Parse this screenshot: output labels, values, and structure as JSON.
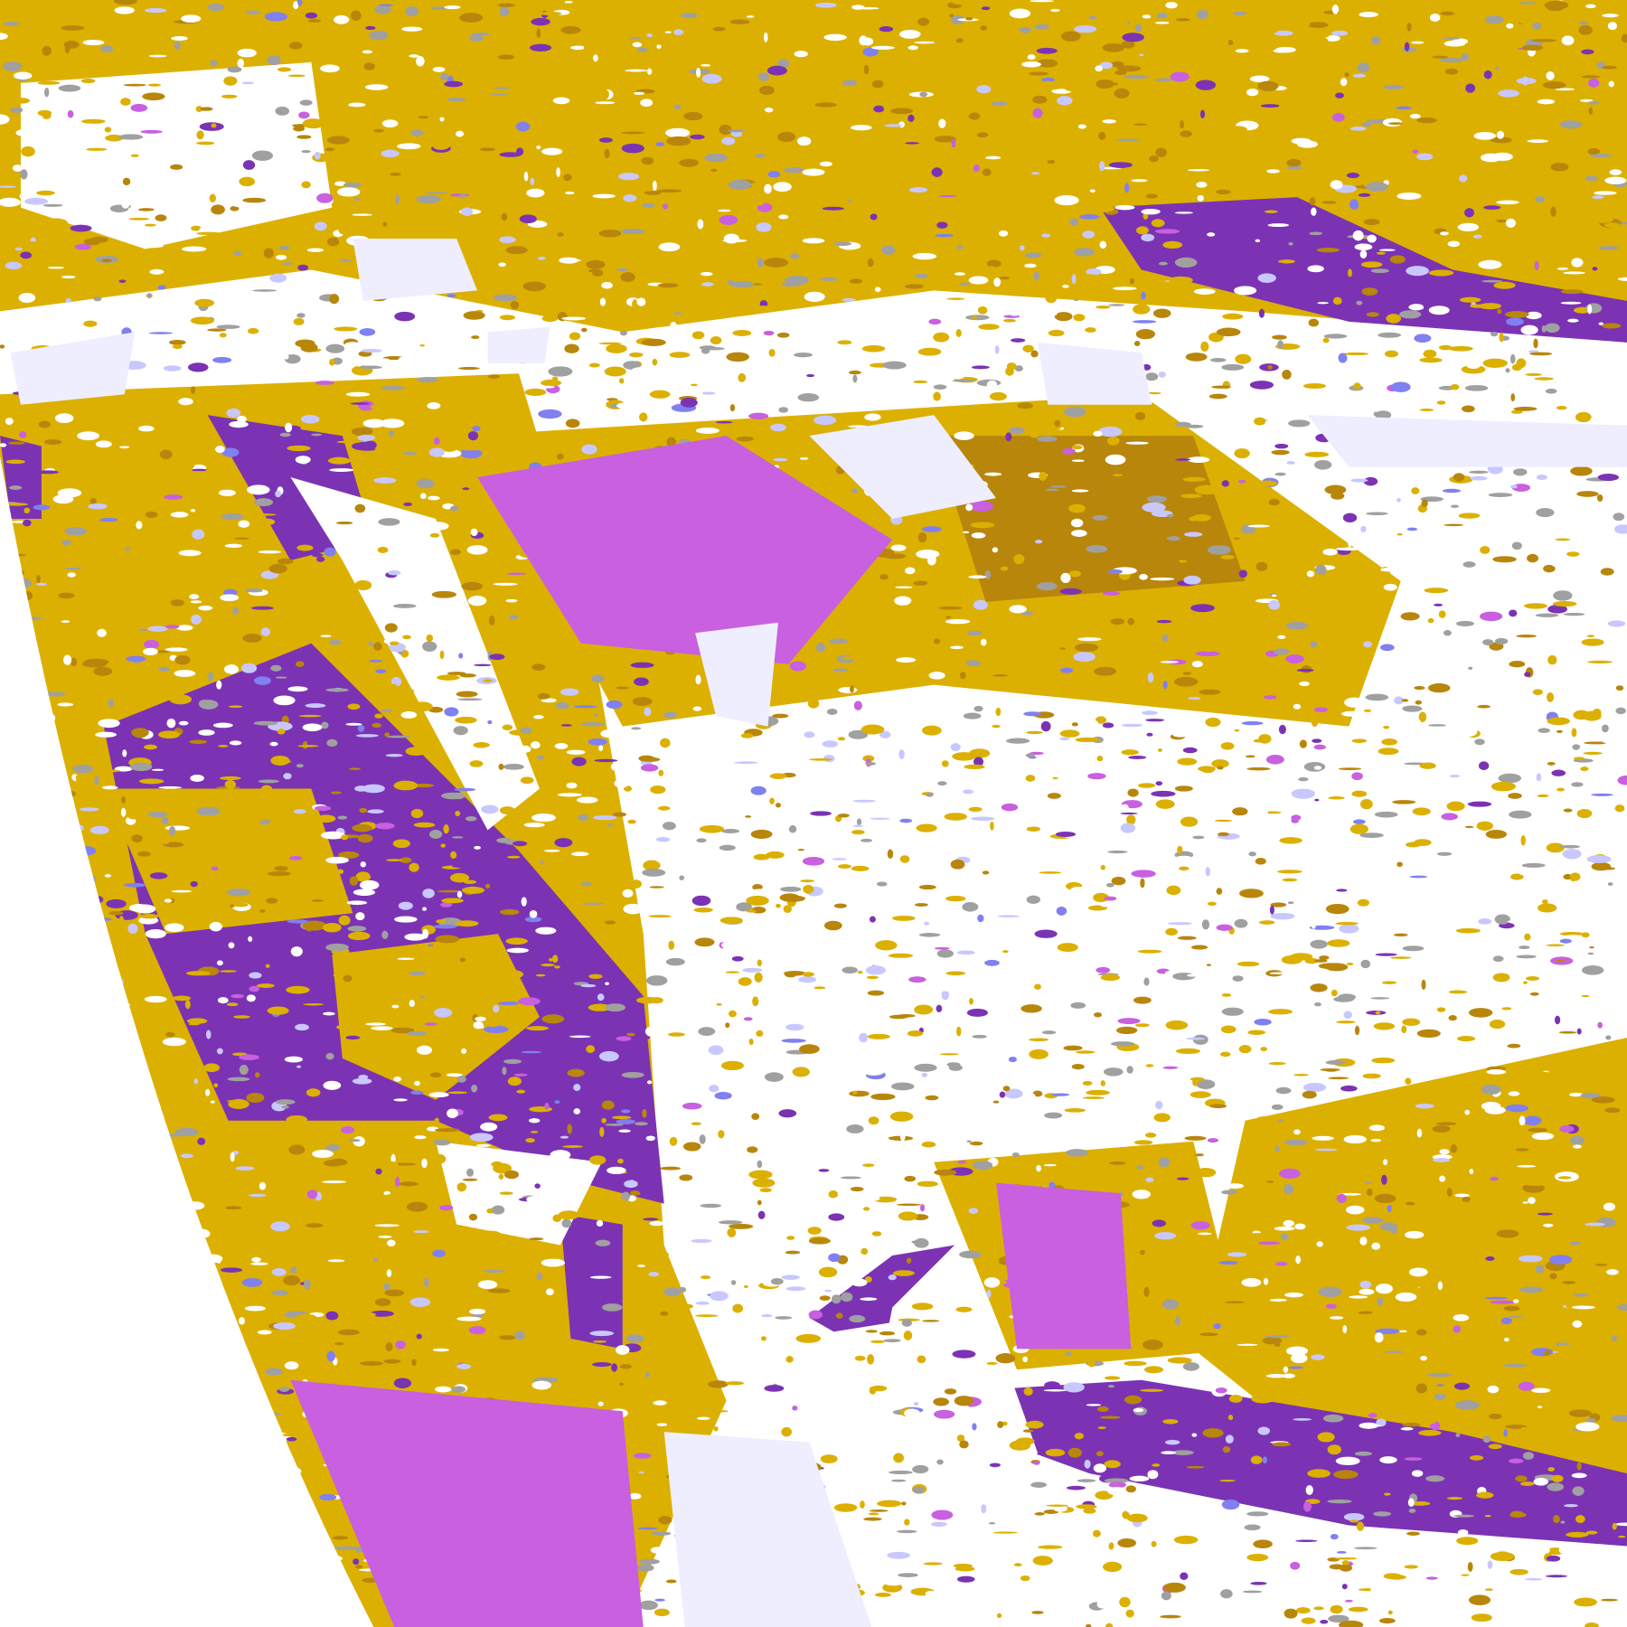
{
  "map": {
    "palette": {
      "background": "#ffffff",
      "gold": "#dcb000",
      "dark_gold": "#b8860b",
      "purple": "#7b33b3",
      "magenta": "#c860e0",
      "blue_violet": "#8080f0",
      "lavender": "#c8c8ff",
      "pale": "#eeeeff",
      "gray": "#a0a0a0"
    }
  }
}
